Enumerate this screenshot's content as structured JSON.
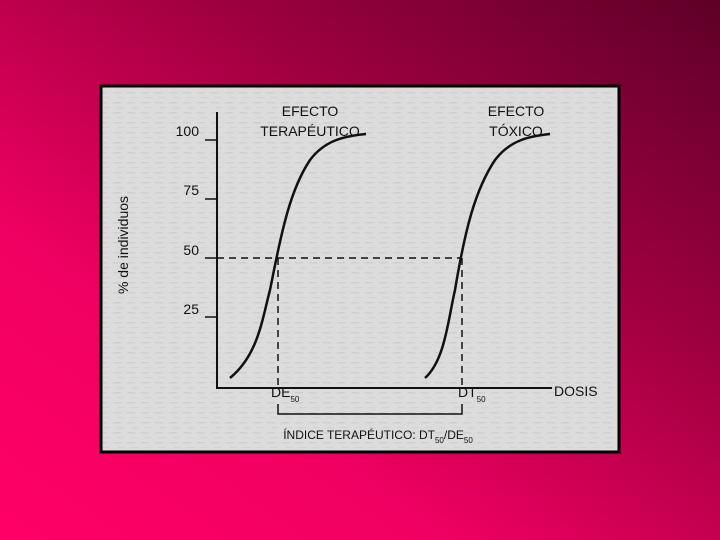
{
  "diagram": {
    "y_axis_label": "% de individuos",
    "y_ticks": [
      "100",
      "75",
      "50",
      "25"
    ],
    "curves": [
      {
        "label_lines": [
          "EFECTO",
          "TERAPÉUTICO"
        ]
      },
      {
        "label_lines": [
          "EFECTO",
          "TÓXICO"
        ]
      }
    ],
    "x_markers": [
      {
        "text": "DE",
        "sub": "50"
      },
      {
        "text": "DT",
        "sub": "50"
      }
    ],
    "x_axis_label": "DOSIS",
    "index_label": [
      "ÍNDICE TERAPÉUTICO: DT",
      "50",
      "/DE",
      "50"
    ]
  }
}
